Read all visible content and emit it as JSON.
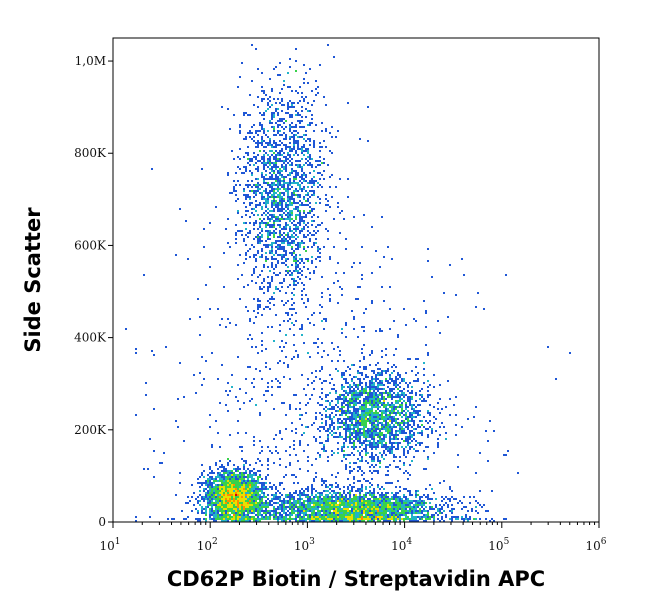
{
  "chart_data": {
    "type": "scatter",
    "subtype": "flow-cytometry density plot",
    "xlabel": "CD62P Biotin / Streptavidin APC",
    "ylabel": "Side Scatter",
    "x_scale": "log",
    "xlim": [
      10,
      1000000
    ],
    "x_ticks": [
      {
        "value": 10,
        "base": "10",
        "exp": "1"
      },
      {
        "value": 100,
        "base": "10",
        "exp": "2"
      },
      {
        "value": 1000,
        "base": "10",
        "exp": "3"
      },
      {
        "value": 10000,
        "base": "10",
        "exp": "4"
      },
      {
        "value": 100000,
        "base": "10",
        "exp": "5"
      },
      {
        "value": 1000000,
        "base": "10",
        "exp": "6"
      }
    ],
    "y_scale": "linear",
    "ylim": [
      0,
      1050000
    ],
    "y_ticks": [
      {
        "value": 0,
        "label": "0"
      },
      {
        "value": 200000,
        "label": "200K"
      },
      {
        "value": 400000,
        "label": "400K"
      },
      {
        "value": 600000,
        "label": "600K"
      },
      {
        "value": 800000,
        "label": "800K"
      },
      {
        "value": 1000000,
        "label": "1,0M"
      }
    ],
    "grid": false,
    "colormap": [
      "#00008c",
      "#1f57d6",
      "#22b3c8",
      "#38d14b",
      "#e8e000",
      "#ff8a00",
      "#e00000"
    ],
    "populations": [
      {
        "x_center": 180,
        "y_center": 55000,
        "x_spread_decades": 0.15,
        "y_spread": 28000,
        "density": "high"
      },
      {
        "x_center": 3000,
        "y_center": 30000,
        "x_spread_decades": 0.45,
        "y_spread": 20000,
        "density": "high"
      },
      {
        "x_center": 550,
        "y_center": 700000,
        "x_spread_decades": 0.22,
        "y_spread": 120000,
        "density": "medium"
      },
      {
        "x_center": 5000,
        "y_center": 230000,
        "x_spread_decades": 0.25,
        "y_spread": 50000,
        "density": "medium"
      },
      {
        "x_center": 1500,
        "y_center": 150000,
        "x_spread_decades": 0.8,
        "y_spread": 250000,
        "density": "sparse"
      }
    ]
  }
}
